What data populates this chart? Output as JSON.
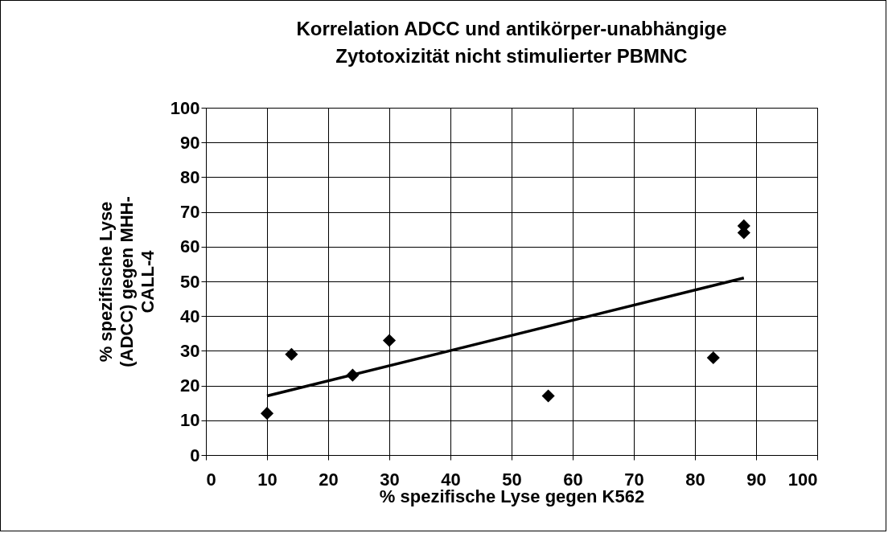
{
  "chart_data": {
    "type": "scatter",
    "title": "Korrelation ADCC und antikörper-unabhängige Zytotoxizität nicht stimulierter PBMNC",
    "xlabel": "% spezifische Lyse gegen K562",
    "ylabel": "% spezifische Lyse (ADCC) gegen MHH-CALL-4",
    "series": [
      {
        "color": "#000000",
        "marker": "diamond",
        "x": [
          10,
          14,
          24,
          30,
          56,
          83,
          88,
          88
        ],
        "values": [
          12,
          29,
          23,
          33,
          17,
          28,
          64,
          66
        ]
      },
      {
        "type": "line",
        "color": "#000000",
        "line_style": "solid",
        "x": [
          10,
          88
        ],
        "values": [
          17,
          51
        ]
      }
    ],
    "xlim": [
      0,
      100
    ],
    "xticks": [
      0,
      10,
      20,
      30,
      40,
      50,
      60,
      70,
      80,
      90,
      100
    ],
    "ylim": [
      0,
      100
    ],
    "yticks": [
      0,
      10,
      20,
      30,
      40,
      50,
      60,
      70,
      80,
      90,
      100
    ],
    "grid": true
  }
}
